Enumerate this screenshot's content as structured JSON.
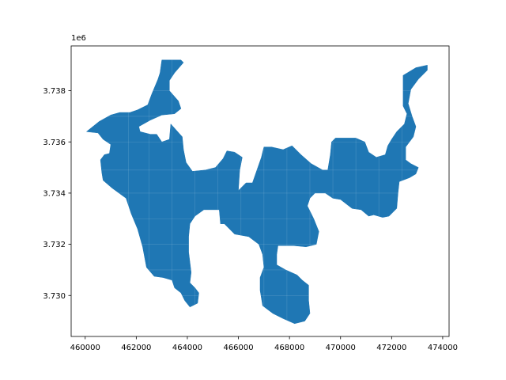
{
  "chart_data": {
    "type": "map",
    "title": "",
    "xlabel": "",
    "ylabel": "",
    "xlim": [
      459450,
      474250
    ],
    "ylim": [
      3728400,
      3739750
    ],
    "y_offset_label": "1e6",
    "xticks": [
      {
        "value": 460000,
        "label": "460000"
      },
      {
        "value": 462000,
        "label": "462000"
      },
      {
        "value": 464000,
        "label": "464000"
      },
      {
        "value": 466000,
        "label": "466000"
      },
      {
        "value": 468000,
        "label": "468000"
      },
      {
        "value": 470000,
        "label": "470000"
      },
      {
        "value": 472000,
        "label": "472000"
      },
      {
        "value": 474000,
        "label": "474000"
      }
    ],
    "yticks": [
      {
        "value": 3730000,
        "label": "3.730"
      },
      {
        "value": 3732000,
        "label": "3.732"
      },
      {
        "value": 3734000,
        "label": "3.734"
      },
      {
        "value": 3736000,
        "label": "3.736"
      },
      {
        "value": 3738000,
        "label": "3.738"
      }
    ],
    "grid": false,
    "fill_color": "#1f77b4",
    "region_outline": [
      [
        460050,
        3736400
      ],
      [
        460550,
        3736800
      ],
      [
        461000,
        3737050
      ],
      [
        461350,
        3737150
      ],
      [
        461750,
        3737150
      ],
      [
        462050,
        3737250
      ],
      [
        462450,
        3737450
      ],
      [
        462600,
        3737850
      ],
      [
        462850,
        3738450
      ],
      [
        462930,
        3738700
      ],
      [
        463000,
        3739200
      ],
      [
        463750,
        3739200
      ],
      [
        463850,
        3739100
      ],
      [
        463500,
        3738700
      ],
      [
        463300,
        3738400
      ],
      [
        463300,
        3738000
      ],
      [
        463650,
        3737600
      ],
      [
        463750,
        3737300
      ],
      [
        463500,
        3737100
      ],
      [
        463000,
        3737050
      ],
      [
        462550,
        3736850
      ],
      [
        462100,
        3736600
      ],
      [
        462150,
        3736400
      ],
      [
        462550,
        3736300
      ],
      [
        462800,
        3736300
      ],
      [
        463000,
        3736000
      ],
      [
        463300,
        3736100
      ],
      [
        463350,
        3736700
      ],
      [
        463800,
        3736200
      ],
      [
        463850,
        3735700
      ],
      [
        463950,
        3735200
      ],
      [
        464200,
        3734850
      ],
      [
        464700,
        3734900
      ],
      [
        465100,
        3735000
      ],
      [
        465400,
        3735350
      ],
      [
        465550,
        3735650
      ],
      [
        465850,
        3735600
      ],
      [
        466150,
        3735400
      ],
      [
        466050,
        3734900
      ],
      [
        466000,
        3734100
      ],
      [
        466300,
        3734400
      ],
      [
        466550,
        3734400
      ],
      [
        466900,
        3735400
      ],
      [
        467000,
        3735800
      ],
      [
        467300,
        3735800
      ],
      [
        467750,
        3735700
      ],
      [
        468100,
        3735850
      ],
      [
        468450,
        3735500
      ],
      [
        468850,
        3735150
      ],
      [
        469300,
        3734900
      ],
      [
        469500,
        3734900
      ],
      [
        469600,
        3735500
      ],
      [
        469650,
        3736000
      ],
      [
        469800,
        3736150
      ],
      [
        470600,
        3736150
      ],
      [
        470950,
        3736000
      ],
      [
        471100,
        3735600
      ],
      [
        471400,
        3735400
      ],
      [
        471750,
        3735500
      ],
      [
        471850,
        3735850
      ],
      [
        472000,
        3736100
      ],
      [
        472200,
        3736400
      ],
      [
        472500,
        3736700
      ],
      [
        472600,
        3737100
      ],
      [
        472450,
        3737400
      ],
      [
        472450,
        3738000
      ],
      [
        472450,
        3738600
      ],
      [
        472950,
        3738900
      ],
      [
        473400,
        3739000
      ],
      [
        473400,
        3738800
      ],
      [
        473050,
        3738450
      ],
      [
        472750,
        3738050
      ],
      [
        472650,
        3737500
      ],
      [
        472800,
        3737000
      ],
      [
        472950,
        3736600
      ],
      [
        472850,
        3736200
      ],
      [
        472550,
        3735800
      ],
      [
        472550,
        3735300
      ],
      [
        472750,
        3735150
      ],
      [
        473050,
        3735000
      ],
      [
        472950,
        3734750
      ],
      [
        472700,
        3734600
      ],
      [
        472300,
        3734450
      ],
      [
        472250,
        3734000
      ],
      [
        472200,
        3733400
      ],
      [
        471900,
        3733100
      ],
      [
        471650,
        3733050
      ],
      [
        471300,
        3733150
      ],
      [
        471100,
        3733100
      ],
      [
        470800,
        3733350
      ],
      [
        470450,
        3733400
      ],
      [
        470000,
        3733750
      ],
      [
        469700,
        3733800
      ],
      [
        469400,
        3734000
      ],
      [
        469000,
        3734000
      ],
      [
        468800,
        3733800
      ],
      [
        468700,
        3733500
      ],
      [
        468950,
        3733000
      ],
      [
        469150,
        3732500
      ],
      [
        469050,
        3732000
      ],
      [
        468650,
        3731900
      ],
      [
        468150,
        3731950
      ],
      [
        467550,
        3731950
      ],
      [
        467500,
        3731600
      ],
      [
        467500,
        3731200
      ],
      [
        467850,
        3731000
      ],
      [
        468300,
        3730800
      ],
      [
        468500,
        3730600
      ],
      [
        468750,
        3730400
      ],
      [
        468750,
        3729800
      ],
      [
        468800,
        3729300
      ],
      [
        468600,
        3729000
      ],
      [
        468200,
        3728900
      ],
      [
        467750,
        3729100
      ],
      [
        467350,
        3729300
      ],
      [
        466950,
        3729600
      ],
      [
        466850,
        3730200
      ],
      [
        466850,
        3730700
      ],
      [
        467000,
        3731100
      ],
      [
        466950,
        3731600
      ],
      [
        466800,
        3732000
      ],
      [
        466400,
        3732300
      ],
      [
        465850,
        3732400
      ],
      [
        465450,
        3732800
      ],
      [
        465300,
        3732800
      ],
      [
        465250,
        3733350
      ],
      [
        464650,
        3733350
      ],
      [
        464300,
        3733100
      ],
      [
        464100,
        3732800
      ],
      [
        464050,
        3732300
      ],
      [
        464050,
        3731700
      ],
      [
        464100,
        3731300
      ],
      [
        464150,
        3730900
      ],
      [
        464100,
        3730500
      ],
      [
        464300,
        3730300
      ],
      [
        464450,
        3730100
      ],
      [
        464400,
        3729700
      ],
      [
        464100,
        3729550
      ],
      [
        463900,
        3729800
      ],
      [
        463750,
        3730100
      ],
      [
        463500,
        3730300
      ],
      [
        463400,
        3730600
      ],
      [
        463050,
        3730700
      ],
      [
        462700,
        3730750
      ],
      [
        462400,
        3731100
      ],
      [
        462250,
        3731900
      ],
      [
        462050,
        3732600
      ],
      [
        461800,
        3733200
      ],
      [
        461700,
        3733500
      ],
      [
        461600,
        3733800
      ],
      [
        461050,
        3734200
      ],
      [
        460700,
        3734500
      ],
      [
        460650,
        3734800
      ],
      [
        460600,
        3735300
      ],
      [
        460750,
        3735500
      ],
      [
        460950,
        3735550
      ],
      [
        461000,
        3735900
      ],
      [
        460700,
        3736100
      ],
      [
        460500,
        3736350
      ],
      [
        460050,
        3736400
      ]
    ]
  }
}
